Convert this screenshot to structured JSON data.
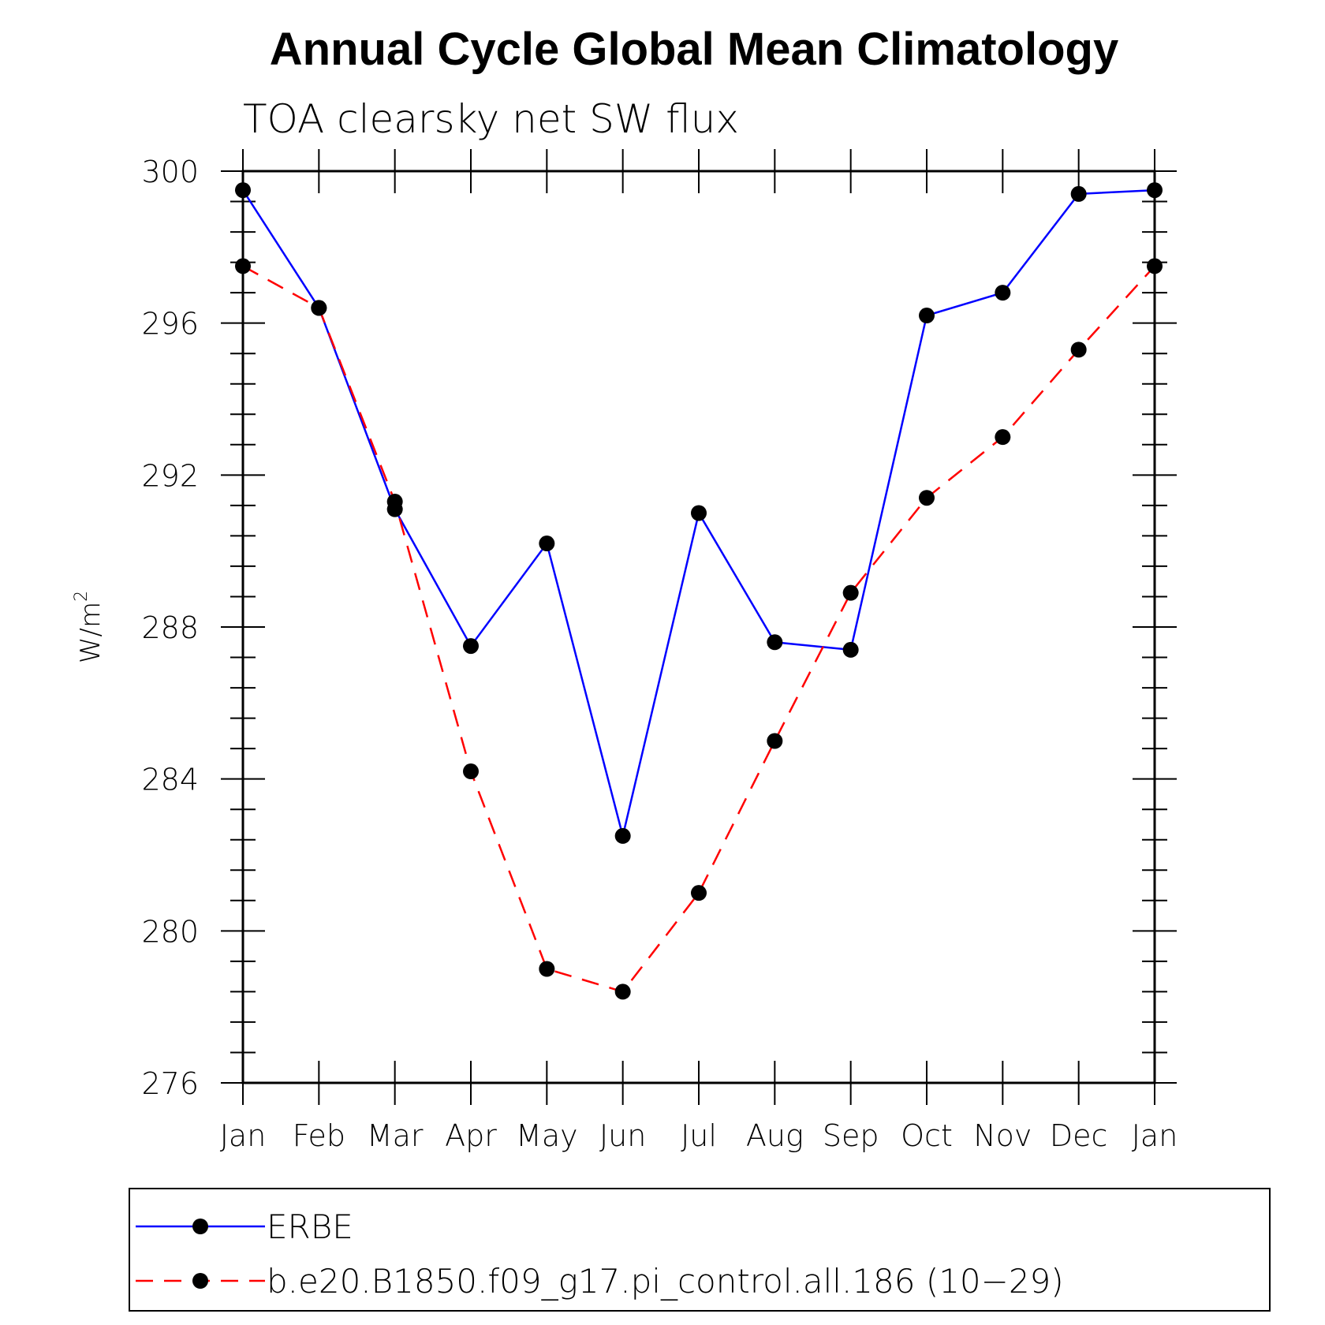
{
  "chart_data": {
    "type": "line",
    "title": "Annual Cycle Global Mean Climatology",
    "subtitle": "TOA clearsky net SW flux",
    "ylabel": "W/m",
    "ylabel_superscript": "2",
    "ylim": [
      276,
      300
    ],
    "yticks": [
      276,
      280,
      284,
      288,
      292,
      296,
      300
    ],
    "categories": [
      "Jan",
      "Feb",
      "Mar",
      "Apr",
      "May",
      "Jun",
      "Jul",
      "Aug",
      "Sep",
      "Oct",
      "Nov",
      "Dec",
      "Jan"
    ],
    "legend_position": "bottom",
    "series": [
      {
        "name": "ERBE",
        "color": "#0000ff",
        "dash": "solid",
        "values": [
          299.5,
          296.4,
          291.1,
          287.5,
          290.2,
          282.5,
          291.0,
          287.6,
          287.4,
          296.2,
          296.8,
          299.4,
          299.5
        ]
      },
      {
        "name": "b.e20.B1850.f09_g17.pi_control.all.186 (10−29)",
        "color": "#ff0000",
        "dash": "dashed",
        "values": [
          297.5,
          296.4,
          291.3,
          284.2,
          279.0,
          278.4,
          281.0,
          285.0,
          288.9,
          291.4,
          293.0,
          295.3,
          297.5
        ]
      }
    ]
  }
}
